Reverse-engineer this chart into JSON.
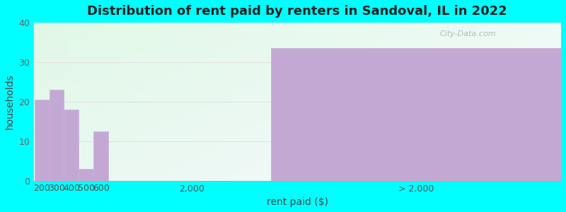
{
  "title": "Distribution of rent paid by renters in Sandoval, IL in 2022",
  "xlabel": "rent paid ($)",
  "ylabel": "households",
  "background_outer": "#00FFFF",
  "bar_color": "#c4a8d4",
  "bar_edge_color": "#c8b0d8",
  "ylim": [
    0,
    40
  ],
  "yticks": [
    0,
    10,
    20,
    30,
    40
  ],
  "small_values": [
    20.5,
    23,
    18,
    3,
    12.5
  ],
  "large_value": 33.5,
  "xtick_labels": [
    "200",
    "300",
    "400",
    "500",
    "600",
    "2,000",
    "> 2,000"
  ],
  "watermark": "City-Data.com",
  "title_fontsize": 13,
  "axis_label_fontsize": 10,
  "tick_fontsize": 9,
  "grad_topleft": [
    0.91,
    0.97,
    0.94
  ],
  "grad_topright": [
    0.97,
    0.98,
    0.99
  ],
  "grad_botleft": [
    0.88,
    0.97,
    0.9
  ],
  "grad_botright": [
    0.93,
    0.98,
    0.96
  ]
}
